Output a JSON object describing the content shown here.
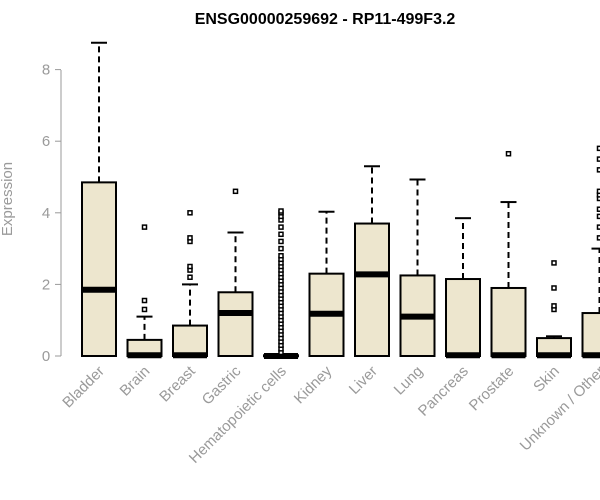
{
  "chart_data": {
    "type": "boxplot",
    "title": "ENSG00000259692 - RP11-499F3.2",
    "xlabel": "",
    "ylabel": "Expression",
    "ylim": [
      0,
      8.75
    ],
    "yticks": [
      0,
      2,
      4,
      6,
      8
    ],
    "grid": false,
    "legend": "none",
    "colors": {
      "box_fill": "#ede6ce",
      "stroke": "#000000",
      "axis": "#9a9a9a"
    },
    "categories": [
      "Bladder",
      "Brain",
      "Breast",
      "Gastric",
      "Hematopoietic cells",
      "Kidney",
      "Liver",
      "Lung",
      "Pancreas",
      "Prostate",
      "Skin",
      "Unknown / Other"
    ],
    "boxes": [
      {
        "category": "Bladder",
        "whisker_low": 0,
        "q1": 0,
        "median": 1.85,
        "q3": 4.85,
        "whisker_high": 8.75,
        "outliers": []
      },
      {
        "category": "Brain",
        "whisker_low": 0,
        "q1": 0,
        "median": 0.02,
        "q3": 0.45,
        "whisker_high": 1.1,
        "outliers": [
          1.3,
          1.55,
          3.6
        ]
      },
      {
        "category": "Breast",
        "whisker_low": 0,
        "q1": 0,
        "median": 0.02,
        "q3": 0.85,
        "whisker_high": 2.0,
        "outliers": [
          2.2,
          2.4,
          2.5,
          3.2,
          3.3,
          4.0
        ]
      },
      {
        "category": "Gastric",
        "whisker_low": 0,
        "q1": 0,
        "median": 1.2,
        "q3": 1.78,
        "whisker_high": 3.45,
        "outliers": [
          4.6
        ]
      },
      {
        "category": "Hematopoietic cells",
        "whisker_low": 0,
        "q1": 0,
        "median": 0.0,
        "q3": 0.02,
        "whisker_high": 0.05,
        "outliers": [
          0.1,
          0.2,
          0.3,
          0.4,
          0.5,
          0.6,
          0.7,
          0.8,
          0.9,
          1.0,
          1.1,
          1.2,
          1.3,
          1.4,
          1.5,
          1.6,
          1.7,
          1.8,
          1.9,
          2.0,
          2.1,
          2.2,
          2.3,
          2.4,
          2.5,
          2.6,
          2.7,
          2.8,
          3.0,
          3.2,
          3.4,
          3.6,
          3.8,
          3.9,
          4.0,
          4.05
        ]
      },
      {
        "category": "Kidney",
        "whisker_low": 0,
        "q1": 0,
        "median": 1.18,
        "q3": 2.3,
        "whisker_high": 4.03,
        "outliers": []
      },
      {
        "category": "Liver",
        "whisker_low": 0,
        "q1": 0,
        "median": 2.28,
        "q3": 3.7,
        "whisker_high": 5.3,
        "outliers": []
      },
      {
        "category": "Lung",
        "whisker_low": 0,
        "q1": 0,
        "median": 1.1,
        "q3": 2.25,
        "whisker_high": 4.93,
        "outliers": []
      },
      {
        "category": "Pancreas",
        "whisker_low": 0,
        "q1": 0,
        "median": 0.02,
        "q3": 2.15,
        "whisker_high": 3.85,
        "outliers": []
      },
      {
        "category": "Prostate",
        "whisker_low": 0,
        "q1": 0,
        "median": 0.02,
        "q3": 1.9,
        "whisker_high": 4.3,
        "outliers": [
          5.65
        ]
      },
      {
        "category": "Skin",
        "whisker_low": 0,
        "q1": 0,
        "median": 0.02,
        "q3": 0.5,
        "whisker_high": 0.55,
        "outliers": [
          1.3,
          1.4,
          1.9,
          2.6
        ]
      },
      {
        "category": "Unknown / Other",
        "whisker_low": 0,
        "q1": 0,
        "median": 0.02,
        "q3": 1.2,
        "whisker_high": 3.0,
        "outliers": [
          3.3,
          3.6,
          3.9,
          4.1,
          4.4,
          4.5,
          4.6,
          5.2,
          5.5,
          5.8
        ]
      }
    ]
  }
}
